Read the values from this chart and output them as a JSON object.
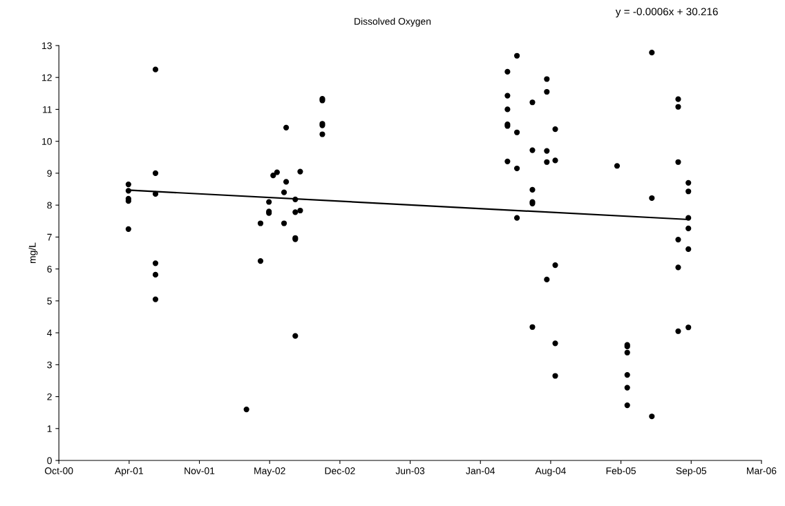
{
  "chart_data": {
    "type": "scatter",
    "title": "Dissolved Oxygen",
    "ylabel": "mg/L",
    "annotations": [
      "y = -0.0006x + 30.216"
    ],
    "xlim": [
      "2000-10-01",
      "2006-03-24"
    ],
    "xticks": [
      {
        "value": "2000-10-01",
        "label": "Oct-00"
      },
      {
        "value": "2001-04-19",
        "label": "Apr-01"
      },
      {
        "value": "2001-11-05",
        "label": "Nov-01"
      },
      {
        "value": "2002-05-24",
        "label": "May-02"
      },
      {
        "value": "2002-12-10",
        "label": "Dec-02"
      },
      {
        "value": "2003-06-28",
        "label": "Jun-03"
      },
      {
        "value": "2004-01-14",
        "label": "Jan-04"
      },
      {
        "value": "2004-08-01",
        "label": "Aug-04"
      },
      {
        "value": "2005-02-17",
        "label": "Feb-05"
      },
      {
        "value": "2005-09-05",
        "label": "Sep-05"
      },
      {
        "value": "2006-03-24",
        "label": "Mar-06"
      }
    ],
    "ylim": [
      0,
      13
    ],
    "yticks": [
      0,
      1,
      2,
      3,
      4,
      5,
      6,
      7,
      8,
      9,
      10,
      11,
      12,
      13
    ],
    "grid": false,
    "series": [
      {
        "color": "#000000",
        "marker": "circle",
        "x": [
          "2001-04-17",
          "2001-04-17",
          "2001-04-17",
          "2001-04-17",
          "2001-04-17",
          "2001-07-03",
          "2001-07-03",
          "2001-07-03",
          "2001-07-03",
          "2001-07-03",
          "2001-07-03",
          "2002-03-19",
          "2002-04-28",
          "2002-04-28",
          "2002-05-22",
          "2002-05-22",
          "2002-05-22",
          "2002-06-03",
          "2002-06-14",
          "2002-07-04",
          "2002-07-04",
          "2002-07-10",
          "2002-07-10",
          "2002-08-05",
          "2002-08-05",
          "2002-08-05",
          "2002-08-05",
          "2002-08-05",
          "2002-08-19",
          "2002-08-19",
          "2002-10-21",
          "2002-10-21",
          "2002-10-21",
          "2002-10-21",
          "2002-10-21",
          "2004-03-31",
          "2004-03-31",
          "2004-03-31",
          "2004-03-31",
          "2004-03-31",
          "2004-03-31",
          "2004-04-27",
          "2004-04-27",
          "2004-04-27",
          "2004-04-27",
          "2004-06-10",
          "2004-06-10",
          "2004-06-10",
          "2004-06-10",
          "2004-06-10",
          "2004-06-10",
          "2004-07-21",
          "2004-07-21",
          "2004-07-21",
          "2004-07-21",
          "2004-07-21",
          "2004-08-14",
          "2004-08-14",
          "2004-08-14",
          "2004-08-14",
          "2004-08-14",
          "2005-02-06",
          "2005-03-07",
          "2005-03-07",
          "2005-03-07",
          "2005-03-07",
          "2005-03-07",
          "2005-03-07",
          "2005-05-16",
          "2005-05-16",
          "2005-05-16",
          "2005-07-30",
          "2005-07-30",
          "2005-07-30",
          "2005-07-30",
          "2005-07-30",
          "2005-07-30",
          "2005-08-28",
          "2005-08-28",
          "2005-08-28",
          "2005-08-28",
          "2005-08-28",
          "2005-08-28"
        ],
        "values": [
          8.65,
          8.45,
          8.2,
          8.13,
          7.25,
          12.25,
          9.0,
          8.35,
          6.18,
          5.82,
          5.05,
          1.6,
          7.43,
          6.25,
          8.1,
          7.8,
          7.75,
          8.93,
          9.03,
          8.4,
          7.43,
          10.43,
          8.73,
          7.78,
          6.97,
          6.93,
          3.9,
          8.18,
          9.05,
          7.83,
          11.33,
          11.28,
          10.55,
          10.5,
          10.22,
          12.18,
          11.43,
          11.0,
          10.53,
          10.48,
          9.37,
          12.68,
          10.28,
          9.15,
          7.6,
          11.22,
          9.72,
          8.48,
          8.1,
          8.05,
          4.18,
          11.95,
          11.55,
          9.7,
          9.35,
          5.67,
          10.38,
          9.4,
          6.12,
          3.67,
          2.65,
          9.23,
          3.62,
          3.57,
          3.38,
          2.68,
          2.28,
          1.73,
          12.78,
          8.22,
          1.38,
          11.32,
          11.08,
          9.35,
          6.92,
          6.05,
          4.05,
          8.7,
          8.43,
          7.6,
          7.27,
          6.62,
          4.17
        ]
      },
      {
        "type": "line",
        "color": "#000000",
        "x": [
          "2001-04-17",
          "2005-08-28"
        ],
        "values": [
          8.47,
          7.55
        ]
      }
    ]
  }
}
